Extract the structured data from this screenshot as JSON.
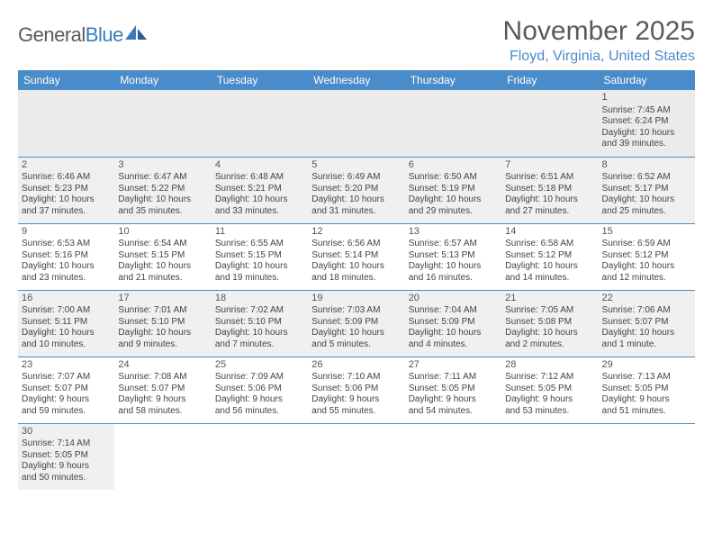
{
  "logo": {
    "text1": "General",
    "text2": "Blue"
  },
  "title": {
    "month": "November 2025",
    "location": "Floyd, Virginia, United States"
  },
  "colors": {
    "accent": "#4a8bc9",
    "text": "#3a3a3a"
  },
  "dayHeaders": [
    "Sunday",
    "Monday",
    "Tuesday",
    "Wednesday",
    "Thursday",
    "Friday",
    "Saturday"
  ],
  "weeks": [
    [
      null,
      null,
      null,
      null,
      null,
      null,
      {
        "n": "1",
        "sr": "Sunrise: 7:45 AM",
        "ss": "Sunset: 6:24 PM",
        "d1": "Daylight: 10 hours",
        "d2": "and 39 minutes."
      }
    ],
    [
      {
        "n": "2",
        "sr": "Sunrise: 6:46 AM",
        "ss": "Sunset: 5:23 PM",
        "d1": "Daylight: 10 hours",
        "d2": "and 37 minutes."
      },
      {
        "n": "3",
        "sr": "Sunrise: 6:47 AM",
        "ss": "Sunset: 5:22 PM",
        "d1": "Daylight: 10 hours",
        "d2": "and 35 minutes."
      },
      {
        "n": "4",
        "sr": "Sunrise: 6:48 AM",
        "ss": "Sunset: 5:21 PM",
        "d1": "Daylight: 10 hours",
        "d2": "and 33 minutes."
      },
      {
        "n": "5",
        "sr": "Sunrise: 6:49 AM",
        "ss": "Sunset: 5:20 PM",
        "d1": "Daylight: 10 hours",
        "d2": "and 31 minutes."
      },
      {
        "n": "6",
        "sr": "Sunrise: 6:50 AM",
        "ss": "Sunset: 5:19 PM",
        "d1": "Daylight: 10 hours",
        "d2": "and 29 minutes."
      },
      {
        "n": "7",
        "sr": "Sunrise: 6:51 AM",
        "ss": "Sunset: 5:18 PM",
        "d1": "Daylight: 10 hours",
        "d2": "and 27 minutes."
      },
      {
        "n": "8",
        "sr": "Sunrise: 6:52 AM",
        "ss": "Sunset: 5:17 PM",
        "d1": "Daylight: 10 hours",
        "d2": "and 25 minutes."
      }
    ],
    [
      {
        "n": "9",
        "sr": "Sunrise: 6:53 AM",
        "ss": "Sunset: 5:16 PM",
        "d1": "Daylight: 10 hours",
        "d2": "and 23 minutes."
      },
      {
        "n": "10",
        "sr": "Sunrise: 6:54 AM",
        "ss": "Sunset: 5:15 PM",
        "d1": "Daylight: 10 hours",
        "d2": "and 21 minutes."
      },
      {
        "n": "11",
        "sr": "Sunrise: 6:55 AM",
        "ss": "Sunset: 5:15 PM",
        "d1": "Daylight: 10 hours",
        "d2": "and 19 minutes."
      },
      {
        "n": "12",
        "sr": "Sunrise: 6:56 AM",
        "ss": "Sunset: 5:14 PM",
        "d1": "Daylight: 10 hours",
        "d2": "and 18 minutes."
      },
      {
        "n": "13",
        "sr": "Sunrise: 6:57 AM",
        "ss": "Sunset: 5:13 PM",
        "d1": "Daylight: 10 hours",
        "d2": "and 16 minutes."
      },
      {
        "n": "14",
        "sr": "Sunrise: 6:58 AM",
        "ss": "Sunset: 5:12 PM",
        "d1": "Daylight: 10 hours",
        "d2": "and 14 minutes."
      },
      {
        "n": "15",
        "sr": "Sunrise: 6:59 AM",
        "ss": "Sunset: 5:12 PM",
        "d1": "Daylight: 10 hours",
        "d2": "and 12 minutes."
      }
    ],
    [
      {
        "n": "16",
        "sr": "Sunrise: 7:00 AM",
        "ss": "Sunset: 5:11 PM",
        "d1": "Daylight: 10 hours",
        "d2": "and 10 minutes."
      },
      {
        "n": "17",
        "sr": "Sunrise: 7:01 AM",
        "ss": "Sunset: 5:10 PM",
        "d1": "Daylight: 10 hours",
        "d2": "and 9 minutes."
      },
      {
        "n": "18",
        "sr": "Sunrise: 7:02 AM",
        "ss": "Sunset: 5:10 PM",
        "d1": "Daylight: 10 hours",
        "d2": "and 7 minutes."
      },
      {
        "n": "19",
        "sr": "Sunrise: 7:03 AM",
        "ss": "Sunset: 5:09 PM",
        "d1": "Daylight: 10 hours",
        "d2": "and 5 minutes."
      },
      {
        "n": "20",
        "sr": "Sunrise: 7:04 AM",
        "ss": "Sunset: 5:09 PM",
        "d1": "Daylight: 10 hours",
        "d2": "and 4 minutes."
      },
      {
        "n": "21",
        "sr": "Sunrise: 7:05 AM",
        "ss": "Sunset: 5:08 PM",
        "d1": "Daylight: 10 hours",
        "d2": "and 2 minutes."
      },
      {
        "n": "22",
        "sr": "Sunrise: 7:06 AM",
        "ss": "Sunset: 5:07 PM",
        "d1": "Daylight: 10 hours",
        "d2": "and 1 minute."
      }
    ],
    [
      {
        "n": "23",
        "sr": "Sunrise: 7:07 AM",
        "ss": "Sunset: 5:07 PM",
        "d1": "Daylight: 9 hours",
        "d2": "and 59 minutes."
      },
      {
        "n": "24",
        "sr": "Sunrise: 7:08 AM",
        "ss": "Sunset: 5:07 PM",
        "d1": "Daylight: 9 hours",
        "d2": "and 58 minutes."
      },
      {
        "n": "25",
        "sr": "Sunrise: 7:09 AM",
        "ss": "Sunset: 5:06 PM",
        "d1": "Daylight: 9 hours",
        "d2": "and 56 minutes."
      },
      {
        "n": "26",
        "sr": "Sunrise: 7:10 AM",
        "ss": "Sunset: 5:06 PM",
        "d1": "Daylight: 9 hours",
        "d2": "and 55 minutes."
      },
      {
        "n": "27",
        "sr": "Sunrise: 7:11 AM",
        "ss": "Sunset: 5:05 PM",
        "d1": "Daylight: 9 hours",
        "d2": "and 54 minutes."
      },
      {
        "n": "28",
        "sr": "Sunrise: 7:12 AM",
        "ss": "Sunset: 5:05 PM",
        "d1": "Daylight: 9 hours",
        "d2": "and 53 minutes."
      },
      {
        "n": "29",
        "sr": "Sunrise: 7:13 AM",
        "ss": "Sunset: 5:05 PM",
        "d1": "Daylight: 9 hours",
        "d2": "and 51 minutes."
      }
    ],
    [
      {
        "n": "30",
        "sr": "Sunrise: 7:14 AM",
        "ss": "Sunset: 5:05 PM",
        "d1": "Daylight: 9 hours",
        "d2": "and 50 minutes."
      },
      null,
      null,
      null,
      null,
      null,
      null
    ]
  ]
}
